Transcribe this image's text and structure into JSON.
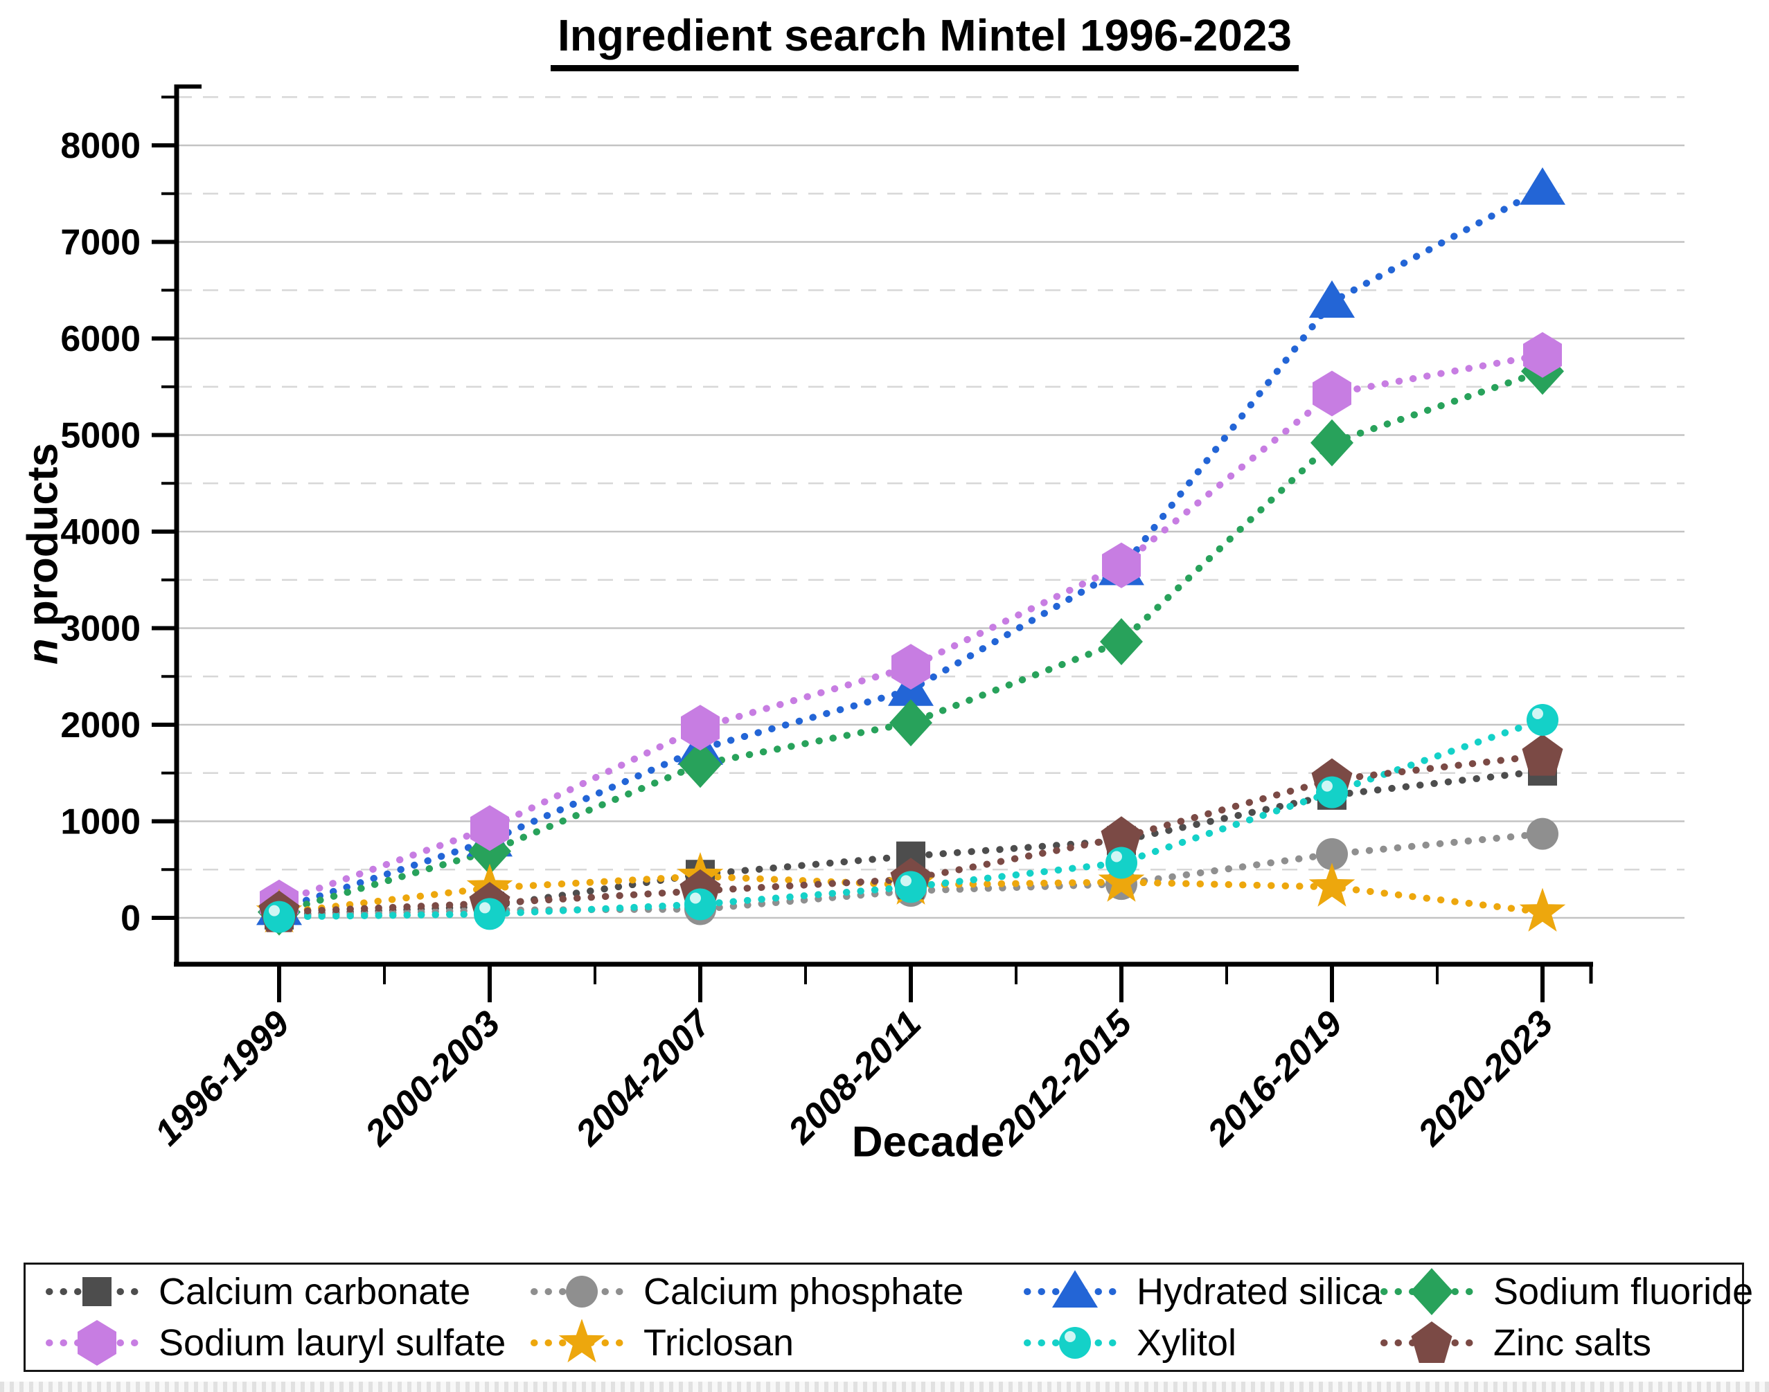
{
  "title": "Ingredient search Mintel 1996-2023",
  "x_axis": {
    "label": "Decade"
  },
  "y_axis": {
    "label_italic": "n",
    "label_rest": " products",
    "ticks": [
      0,
      1000,
      2000,
      3000,
      4000,
      5000,
      6000,
      7000,
      8000
    ]
  },
  "chart_data": {
    "type": "line",
    "title": "Ingredient search Mintel 1996-2023",
    "xlabel": "Decade",
    "ylabel": "n products",
    "categories": [
      "1996-1999",
      "2000-2003",
      "2004-2007",
      "2008-2011",
      "2012-2015",
      "2016-2019",
      "2020-2023"
    ],
    "ylim": [
      0,
      8500
    ],
    "y_major_step": 1000,
    "y_minor_step": 500,
    "grid": "horizontal; solid majors every 1000, dashed minors every 500",
    "legend_position": "bottom",
    "line_style": "dotted",
    "series": [
      {
        "name": "Calcium carbonate",
        "marker": "square",
        "color": "#4d4d4d",
        "values": [
          30,
          120,
          450,
          640,
          800,
          1270,
          1520
        ]
      },
      {
        "name": "Calcium phosphate",
        "marker": "circle",
        "color": "#8f8f8f",
        "values": [
          20,
          80,
          90,
          280,
          350,
          660,
          870
        ]
      },
      {
        "name": "Hydrated silica",
        "marker": "triangle",
        "color": "#2365d6",
        "values": [
          90,
          800,
          1750,
          2360,
          3610,
          6380,
          7550
        ]
      },
      {
        "name": "Sodium fluoride",
        "marker": "diamond",
        "color": "#28a25b",
        "values": [
          60,
          690,
          1590,
          2020,
          2860,
          4920,
          5660
        ]
      },
      {
        "name": "Sodium lauryl sulfate",
        "marker": "hexagon",
        "color": "#c77de2",
        "values": [
          160,
          930,
          1970,
          2600,
          3650,
          5430,
          5830
        ]
      },
      {
        "name": "Triclosan",
        "marker": "star",
        "color": "#eda70d",
        "values": [
          50,
          310,
          430,
          340,
          370,
          320,
          60
        ]
      },
      {
        "name": "Xylitol",
        "marker": "circle",
        "color": "#14d1c8",
        "shine": true,
        "values": [
          10,
          40,
          140,
          320,
          570,
          1300,
          2050
        ]
      },
      {
        "name": "Zinc salts",
        "marker": "pentagon",
        "color": "#7b4a45",
        "values": [
          60,
          150,
          280,
          400,
          830,
          1430,
          1680
        ]
      }
    ],
    "draw_order_back_to_front": [
      1,
      0,
      2,
      3,
      4,
      5,
      7,
      6
    ]
  }
}
